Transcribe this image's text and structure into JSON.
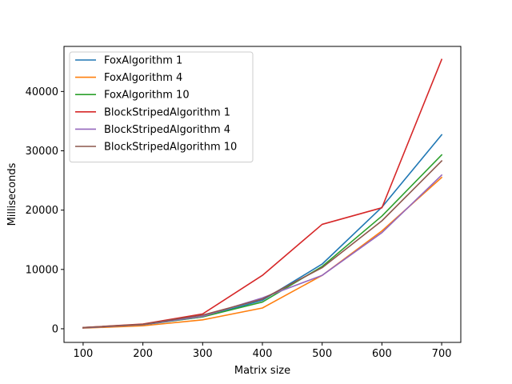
{
  "chart_data": {
    "type": "line",
    "title": "",
    "xlabel": "Matrix size",
    "ylabel": "Milliseconds",
    "x": [
      100,
      200,
      300,
      400,
      500,
      600,
      700
    ],
    "xlim": [
      68,
      732
    ],
    "ylim": [
      -2300,
      47600
    ],
    "xticks": [
      100,
      200,
      300,
      400,
      500,
      600,
      700
    ],
    "yticks": [
      0,
      10000,
      20000,
      30000,
      40000
    ],
    "grid": false,
    "legend_position": "upper-left",
    "series": [
      {
        "name": "FoxAlgorithm 1",
        "color": "#1f77b4",
        "values": [
          150,
          650,
          2000,
          4800,
          10900,
          20500,
          32700
        ]
      },
      {
        "name": "FoxAlgorithm 4",
        "color": "#ff7f0e",
        "values": [
          100,
          500,
          1500,
          3500,
          9000,
          16500,
          25500
        ]
      },
      {
        "name": "FoxAlgorithm 10",
        "color": "#2ca02c",
        "values": [
          150,
          700,
          2000,
          4500,
          10500,
          19000,
          29300
        ]
      },
      {
        "name": "BlockStripedAlgorithm 1",
        "color": "#d62728",
        "values": [
          200,
          800,
          2500,
          9000,
          17600,
          20400,
          45400
        ]
      },
      {
        "name": "BlockStripedAlgorithm 4",
        "color": "#9467bd",
        "values": [
          150,
          700,
          2100,
          5200,
          9000,
          16200,
          25900
        ]
      },
      {
        "name": "BlockStripedAlgorithm 10",
        "color": "#8c564b",
        "values": [
          200,
          750,
          2300,
          5000,
          10300,
          18200,
          28300
        ]
      }
    ]
  }
}
